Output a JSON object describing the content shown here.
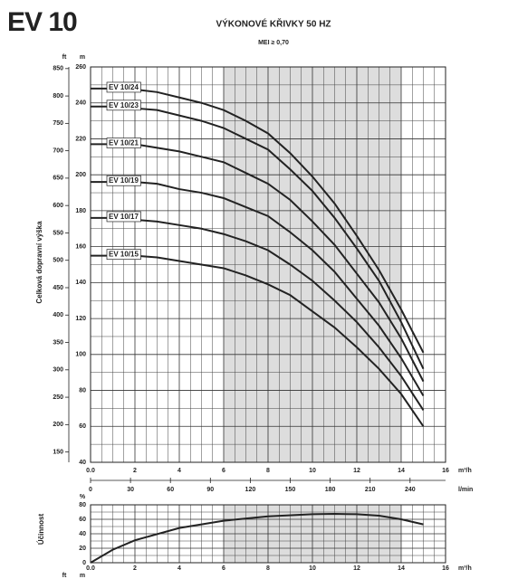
{
  "brand": "EV 10",
  "chart_data": [
    {
      "type": "line",
      "title": "VÝKONOVÉ KŘIVKY 50 HZ",
      "subtitle": "MEI ≥ 0,70",
      "y_label": "Celková dopravní výška",
      "y_unit": "m",
      "y2_unit": "ft",
      "x_unit": "m³/h",
      "x2_unit": "l/min",
      "x": [
        0,
        1,
        2,
        3,
        4,
        5,
        6,
        7,
        8,
        9,
        10,
        11,
        12,
        13,
        14,
        15
      ],
      "xlim": [
        0,
        16
      ],
      "xticks": [
        {
          "value": 0,
          "label": "0.0"
        },
        2,
        4,
        6,
        8,
        10,
        12,
        14,
        16
      ],
      "x2lim": [
        0,
        266.67
      ],
      "x2ticks": [
        0,
        30,
        60,
        90,
        120,
        150,
        180,
        210,
        240
      ],
      "ylim": [
        40,
        260
      ],
      "yticks": [
        40,
        60,
        80,
        100,
        120,
        140,
        160,
        180,
        200,
        220,
        240,
        260
      ],
      "y2lim": [
        131.2,
        853
      ],
      "y2ticks": [
        150,
        200,
        250,
        300,
        350,
        400,
        450,
        500,
        550,
        600,
        650,
        700,
        750,
        800,
        850
      ],
      "shaded_range": [
        6,
        14
      ],
      "grid": true,
      "series": [
        {
          "name": "EV 10/24",
          "color": "#222",
          "values": [
            248,
            248,
            247.5,
            246,
            243,
            240,
            236,
            230,
            223,
            212,
            199,
            184,
            166,
            147,
            125,
            101
          ]
        },
        {
          "name": "EV 10/23",
          "color": "#222",
          "values": [
            238,
            238,
            237,
            236,
            233,
            230,
            226,
            220,
            214,
            203,
            191,
            176,
            159,
            141,
            118,
            92
          ]
        },
        {
          "name": "EV 10/21",
          "color": "#222",
          "values": [
            217,
            217,
            217,
            215,
            213,
            210,
            207,
            201,
            195,
            186,
            174,
            161,
            145,
            129,
            109,
            85
          ]
        },
        {
          "name": "EV 10/19",
          "color": "#222",
          "values": [
            196,
            196,
            196,
            195,
            192,
            190,
            187,
            182,
            177,
            168,
            158,
            146,
            131,
            116,
            98,
            77
          ]
        },
        {
          "name": "EV 10/17",
          "color": "#222",
          "values": [
            176,
            176,
            175,
            174,
            172,
            170,
            167,
            163,
            158,
            150,
            141,
            130,
            118,
            104,
            88,
            69
          ]
        },
        {
          "name": "EV 10/15",
          "color": "#222",
          "values": [
            155,
            155,
            155,
            154,
            152,
            150,
            148,
            144,
            139,
            133,
            124,
            115,
            104,
            92,
            78,
            60
          ]
        }
      ]
    },
    {
      "type": "line",
      "y_label": "Účinnost",
      "y_unit": "%",
      "x_unit": "m³/h",
      "x": [
        0,
        1,
        2,
        4,
        6,
        8,
        10,
        11,
        12,
        13,
        14,
        15
      ],
      "xlim": [
        0,
        16
      ],
      "xticks": [
        {
          "value": 0,
          "label": "0.0"
        },
        2,
        4,
        6,
        8,
        10,
        12,
        14,
        16
      ],
      "ylim": [
        0,
        80
      ],
      "yticks": [
        0,
        20,
        40,
        60,
        80
      ],
      "shaded_range": [
        6,
        14
      ],
      "grid": true,
      "series": [
        {
          "color": "#222",
          "values": [
            0,
            18,
            31,
            48,
            58,
            64,
            67,
            67.5,
            67,
            65,
            60,
            53
          ]
        }
      ]
    }
  ],
  "bottom_units": [
    "ft",
    "m"
  ]
}
